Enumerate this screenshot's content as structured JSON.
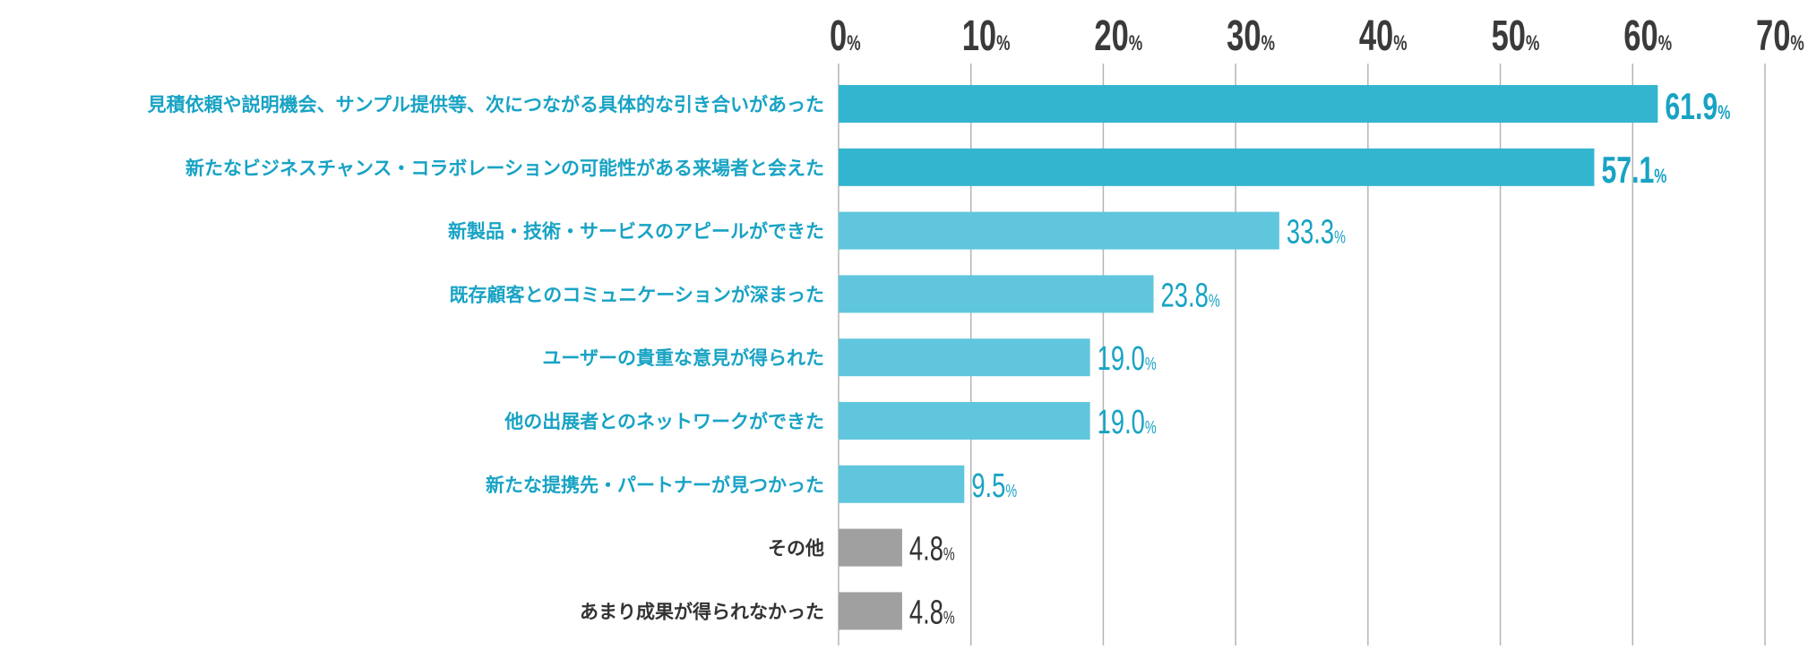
{
  "chart_data": {
    "type": "bar",
    "orientation": "horizontal",
    "xlim": [
      0,
      70
    ],
    "ticks": [
      0,
      10,
      20,
      30,
      40,
      50,
      60,
      70
    ],
    "tick_labels": [
      "0",
      "10",
      "20",
      "30",
      "40",
      "50",
      "60",
      "70"
    ],
    "tick_unit": "%",
    "grid": true,
    "categories": [
      "見積依頼や説明機会、サンプル提供等、次につながる具体的な引き合いがあった",
      "新たなビジネスチャンス・コラボレーションの可能性がある来場者と会えた",
      "新製品・技術・サービスのアピールができた",
      "既存顧客とのコミュニケーションが深まった",
      "ユーザーの貴重な意見が得られた",
      "他の出展者とのネットワークができた",
      "新たな提携先・パートナーが見つかった",
      "その他",
      "あまり成果が得られなかった"
    ],
    "values": [
      61.9,
      57.1,
      33.3,
      23.8,
      19.0,
      19.0,
      9.5,
      4.8,
      4.8
    ],
    "value_labels": [
      "61.9",
      "57.1",
      "33.3",
      "23.8",
      "19.0",
      "19.0",
      "9.5",
      "4.8",
      "4.8"
    ],
    "value_unit": "%",
    "colors": {
      "top": "#33b5d0",
      "mid": "#60c6dd",
      "other": "#a0a0a0",
      "label_blue": "#18a3c4",
      "label_dark": "#333333",
      "grid": "#b5b5b5"
    }
  }
}
